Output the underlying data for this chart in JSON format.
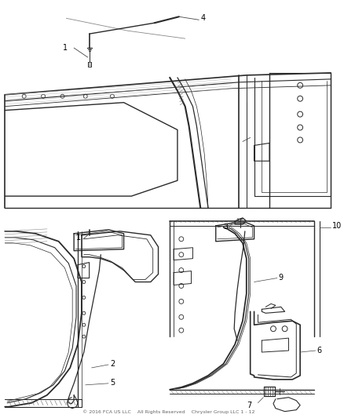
{
  "background_color": "#ffffff",
  "line_color": "#2a2a2a",
  "text_color": "#000000",
  "fig_width": 4.38,
  "fig_height": 5.33,
  "dpi": 100,
  "footer": "© 2016 FCA US LLC    All Rights Reserved    Chrysler Group LLC 1 - 12"
}
